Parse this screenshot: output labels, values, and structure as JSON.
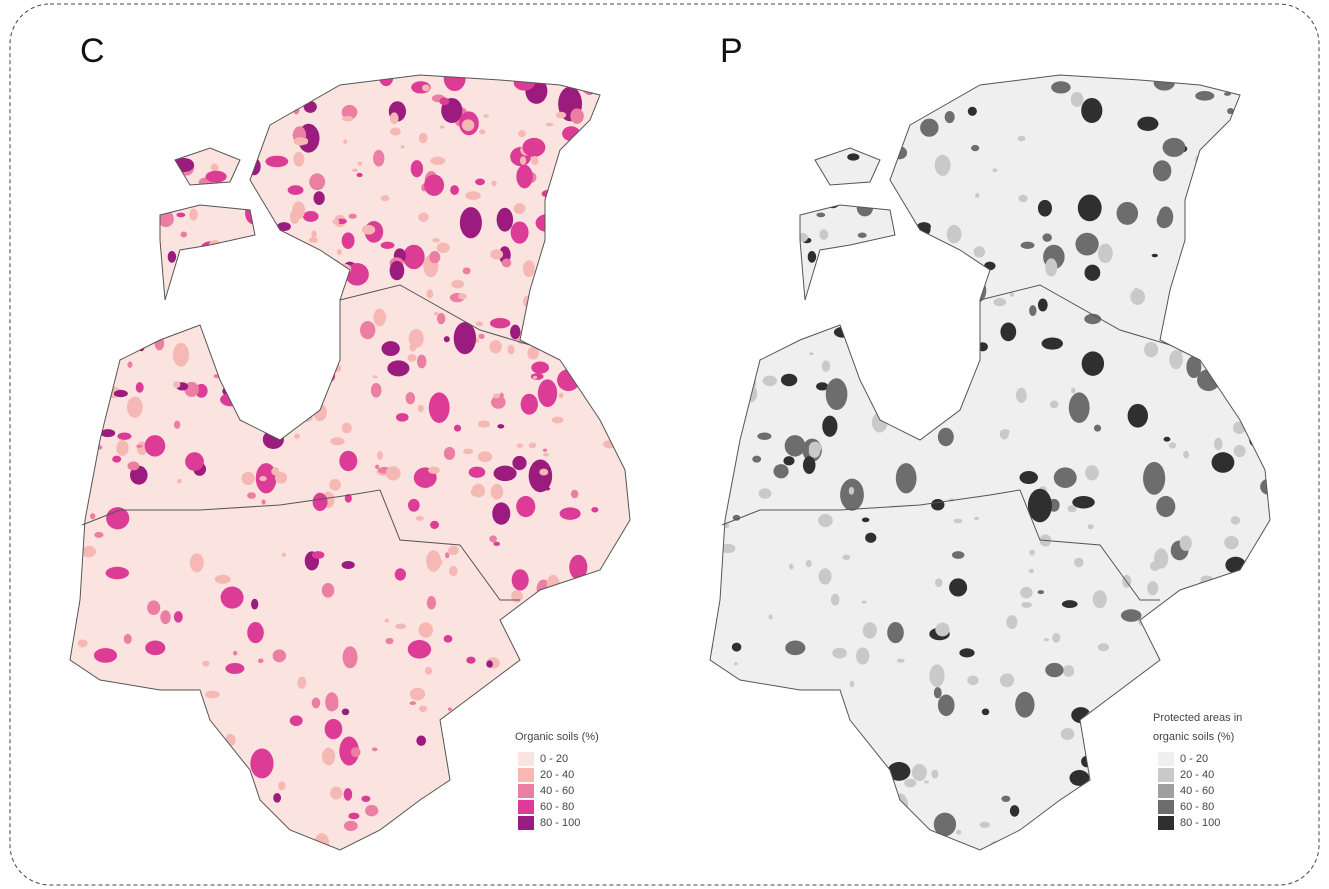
{
  "panels": [
    {
      "label": "C",
      "legend": {
        "title": [
          "Organic soils (%)"
        ],
        "items": [
          {
            "label": "0 - 20",
            "color": "#fbe3df"
          },
          {
            "label": "20 - 40",
            "color": "#f5b8b4"
          },
          {
            "label": "40 - 60",
            "color": "#ec7ea3"
          },
          {
            "label": "60 - 80",
            "color": "#dc3c96"
          },
          {
            "label": "80 - 100",
            "color": "#9c1b7e"
          }
        ]
      }
    },
    {
      "label": "P",
      "legend": {
        "title": [
          "Protected areas in",
          "organic soils (%)"
        ],
        "items": [
          {
            "label": "0 - 20",
            "color": "#efefef"
          },
          {
            "label": "20 - 40",
            "color": "#c9c9c9"
          },
          {
            "label": "40 - 60",
            "color": "#9f9f9f"
          },
          {
            "label": "60 - 80",
            "color": "#6d6d6d"
          },
          {
            "label": "80 - 100",
            "color": "#2f2f2f"
          }
        ]
      }
    }
  ]
}
